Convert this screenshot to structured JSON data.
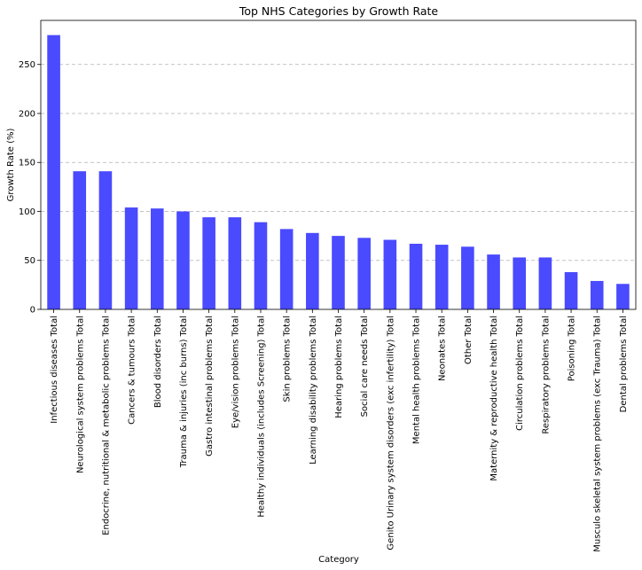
{
  "chart_data": {
    "type": "bar",
    "title": "Top NHS Categories by Growth Rate",
    "xlabel": "Category",
    "ylabel": "Growth Rate (%)",
    "ylim": [
      0,
      295
    ],
    "yticks": [
      0,
      50,
      100,
      150,
      200,
      250
    ],
    "grid": "y-dashed",
    "bar_color": "#4a4aff",
    "categories": [
      "Infectious diseases Total",
      "Neurological system problems Total",
      "Endocrine, nutritional & metabolic problems Total",
      "Cancers & tumours Total",
      "Blood disorders Total",
      "Trauma & injuries (inc burns) Total",
      "Gastro intestinal problems Total",
      "Eye/vision problems Total",
      "Healthy individuals (includes Screening) Total",
      "Skin problems Total",
      "Learning disability problems Total",
      "Hearing problems Total",
      "Social care needs Total",
      "Genito Urinary system disorders (exc infertility) Total",
      "Mental health problems Total",
      "Neonates Total",
      "Other Total",
      "Maternity & reproductive health Total",
      "Circulation problems Total",
      "Respiratory problems Total",
      "Poisoning Total",
      "Musculo skeletal system problems (exc Trauma) Total",
      "Dental problems Total"
    ],
    "values": [
      280,
      141,
      141,
      104,
      103,
      100,
      94,
      94,
      89,
      82,
      78,
      75,
      73,
      71,
      67,
      66,
      64,
      56,
      53,
      53,
      38,
      29,
      26
    ]
  }
}
